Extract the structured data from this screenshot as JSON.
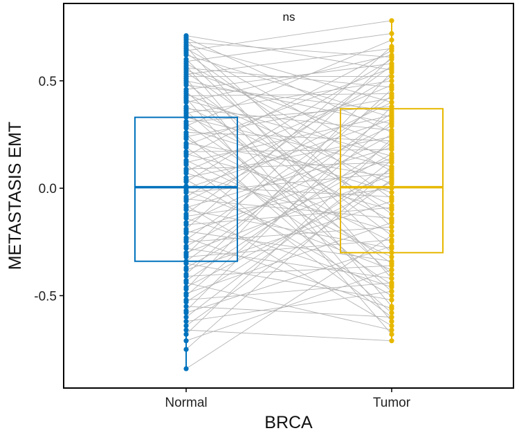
{
  "chart_data": {
    "type": "box",
    "xlabel": "BRCA",
    "ylabel": "METASTASIS EMT",
    "annotation": "ns",
    "categories": [
      "Normal",
      "Tumor"
    ],
    "colors": {
      "Normal": "#0072BD",
      "Tumor": "#E7B800",
      "pair_lines": "#B3B3B3"
    },
    "y_ticks": [
      {
        "value": 0.5,
        "label": "0.5"
      },
      {
        "value": 0.0,
        "label": "0.0"
      },
      {
        "value": -0.5,
        "label": "-0.5"
      }
    ],
    "ylim": [
      -0.93,
      0.86
    ],
    "boxes": [
      {
        "name": "Normal",
        "q1": -0.34,
        "median": 0.005,
        "q3": 0.33,
        "min": -0.84,
        "max": 0.71
      },
      {
        "name": "Tumor",
        "q1": -0.3,
        "median": 0.005,
        "q3": 0.37,
        "min": -0.71,
        "max": 0.78
      }
    ],
    "pairs": [
      [
        0.71,
        0.55
      ],
      [
        0.7,
        0.26
      ],
      [
        0.69,
        -0.18
      ],
      [
        0.68,
        0.61
      ],
      [
        0.67,
        0.4
      ],
      [
        0.66,
        -0.42
      ],
      [
        0.65,
        0.12
      ],
      [
        0.64,
        0.78
      ],
      [
        0.63,
        -0.05
      ],
      [
        0.62,
        0.33
      ],
      [
        0.6,
        -0.3
      ],
      [
        0.59,
        0.72
      ],
      [
        0.58,
        0.08
      ],
      [
        0.57,
        -0.55
      ],
      [
        0.56,
        0.47
      ],
      [
        0.55,
        0.2
      ],
      [
        0.54,
        -0.12
      ],
      [
        0.53,
        0.65
      ],
      [
        0.52,
        0.52
      ],
      [
        0.51,
        -0.62
      ],
      [
        0.5,
        0.3
      ],
      [
        0.49,
        -0.22
      ],
      [
        0.48,
        0.36
      ],
      [
        0.46,
        0.58
      ],
      [
        0.45,
        -0.4
      ],
      [
        0.44,
        0.02
      ],
      [
        0.43,
        0.44
      ],
      [
        0.42,
        -0.68
      ],
      [
        0.41,
        0.15
      ],
      [
        0.4,
        0.62
      ],
      [
        0.38,
        -0.08
      ],
      [
        0.37,
        0.27
      ],
      [
        0.36,
        -0.48
      ],
      [
        0.35,
        0.5
      ],
      [
        0.34,
        -0.15
      ],
      [
        0.33,
        0.1
      ],
      [
        0.31,
        0.38
      ],
      [
        0.3,
        -0.35
      ],
      [
        0.29,
        0.69
      ],
      [
        0.28,
        -0.02
      ],
      [
        0.26,
        0.22
      ],
      [
        0.25,
        -0.58
      ],
      [
        0.24,
        0.42
      ],
      [
        0.23,
        -0.25
      ],
      [
        0.21,
        0.05
      ],
      [
        0.2,
        0.56
      ],
      [
        0.19,
        -0.45
      ],
      [
        0.17,
        0.18
      ],
      [
        0.16,
        -0.1
      ],
      [
        0.15,
        0.64
      ],
      [
        0.13,
        -0.32
      ],
      [
        0.12,
        0.34
      ],
      [
        0.11,
        -0.6
      ],
      [
        0.09,
        0.12
      ],
      [
        0.08,
        0.48
      ],
      [
        0.07,
        -0.2
      ],
      [
        0.05,
        0.24
      ],
      [
        0.04,
        -0.5
      ],
      [
        0.03,
        0.6
      ],
      [
        0.01,
        -0.04
      ],
      [
        0.0,
        0.32
      ],
      [
        -0.01,
        -0.38
      ],
      [
        -0.02,
        0.07
      ],
      [
        -0.04,
        0.52
      ],
      [
        -0.05,
        -0.14
      ],
      [
        -0.06,
        0.4
      ],
      [
        -0.08,
        -0.64
      ],
      [
        -0.09,
        0.19
      ],
      [
        -0.1,
        -0.28
      ],
      [
        -0.12,
        0.57
      ],
      [
        -0.13,
        0.0
      ],
      [
        -0.14,
        -0.46
      ],
      [
        -0.16,
        0.29
      ],
      [
        -0.17,
        -0.09
      ],
      [
        -0.19,
        0.66
      ],
      [
        -0.2,
        -0.34
      ],
      [
        -0.21,
        0.14
      ],
      [
        -0.23,
        -0.56
      ],
      [
        -0.24,
        0.43
      ],
      [
        -0.25,
        -0.18
      ],
      [
        -0.27,
        0.25
      ],
      [
        -0.28,
        -0.42
      ],
      [
        -0.3,
        0.06
      ],
      [
        -0.31,
        0.61
      ],
      [
        -0.32,
        -0.24
      ],
      [
        -0.34,
        0.35
      ],
      [
        -0.35,
        -0.52
      ],
      [
        -0.37,
        0.16
      ],
      [
        -0.38,
        -0.06
      ],
      [
        -0.4,
        0.46
      ],
      [
        -0.41,
        -0.36
      ],
      [
        -0.43,
        0.21
      ],
      [
        -0.44,
        -0.66
      ],
      [
        -0.46,
        0.03
      ],
      [
        -0.47,
        0.54
      ],
      [
        -0.49,
        -0.16
      ],
      [
        -0.5,
        0.31
      ],
      [
        -0.52,
        -0.44
      ],
      [
        -0.53,
        0.09
      ],
      [
        -0.55,
        -0.6
      ],
      [
        -0.57,
        0.38
      ],
      [
        -0.58,
        -0.27
      ],
      [
        -0.6,
        0.13
      ],
      [
        -0.62,
        -0.48
      ],
      [
        -0.64,
        0.04
      ],
      [
        -0.66,
        -0.71
      ],
      [
        -0.68,
        0.23
      ],
      [
        -0.71,
        -0.38
      ],
      [
        -0.75,
        0.1
      ],
      [
        -0.84,
        -0.22
      ]
    ]
  }
}
